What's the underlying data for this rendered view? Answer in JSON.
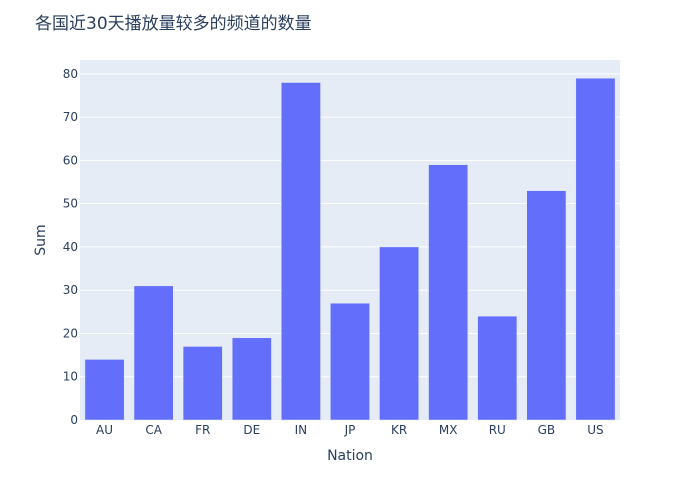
{
  "chart_data": {
    "type": "bar",
    "title": "各国近30天播放量较多的频道的数量",
    "xlabel": "Nation",
    "ylabel": "Sum",
    "categories": [
      "AU",
      "CA",
      "FR",
      "DE",
      "IN",
      "JP",
      "KR",
      "MX",
      "RU",
      "GB",
      "US"
    ],
    "values": [
      14,
      31,
      17,
      19,
      78,
      27,
      40,
      59,
      24,
      53,
      79
    ],
    "ylim": [
      0,
      83.2
    ],
    "yticks": [
      0,
      10,
      20,
      30,
      40,
      50,
      60,
      70,
      80
    ],
    "grid": true,
    "colors": {
      "bar": "#636efa",
      "plot_background": "#e5ecf6",
      "grid": "#ffffff",
      "text": "#2a3f5f"
    }
  }
}
